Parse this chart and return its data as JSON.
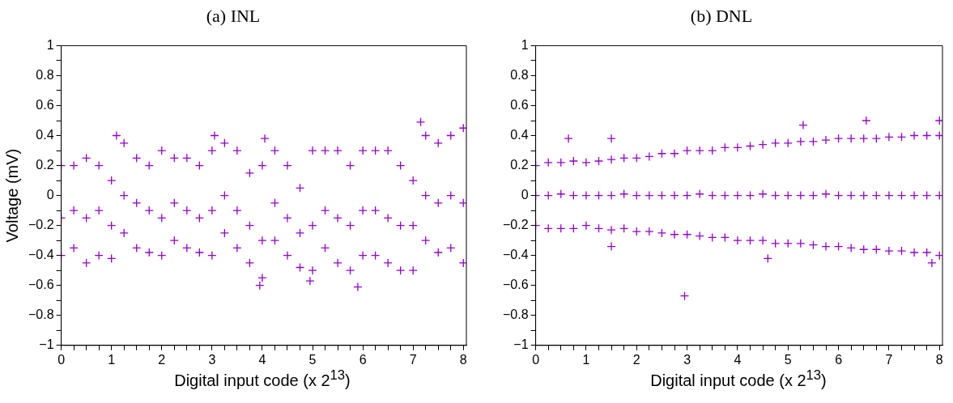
{
  "chart_data": [
    {
      "type": "scatter",
      "title": "(a) INL",
      "xlabel": "Digital input code (x 2$^{13}$)",
      "ylabel": "Voltage (mV)",
      "marker": "cross",
      "color": "#9400d3",
      "xlim": [
        0,
        8.06
      ],
      "xticks": [
        0,
        {
          "value": 0.25,
          "label": null
        },
        {
          "value": 0.5,
          "label": null
        },
        {
          "value": 0.75,
          "label": null
        },
        1,
        {
          "value": 1.25,
          "label": null
        },
        {
          "value": 1.5,
          "label": null
        },
        {
          "value": 1.75,
          "label": null
        },
        2,
        {
          "value": 2.25,
          "label": null
        },
        {
          "value": 2.5,
          "label": null
        },
        {
          "value": 2.75,
          "label": null
        },
        3,
        {
          "value": 3.25,
          "label": null
        },
        {
          "value": 3.5,
          "label": null
        },
        {
          "value": 3.75,
          "label": null
        },
        4,
        {
          "value": 4.25,
          "label": null
        },
        {
          "value": 4.5,
          "label": null
        },
        {
          "value": 4.75,
          "label": null
        },
        5,
        {
          "value": 5.25,
          "label": null
        },
        {
          "value": 5.5,
          "label": null
        },
        {
          "value": 5.75,
          "label": null
        },
        6,
        {
          "value": 6.25,
          "label": null
        },
        {
          "value": 6.5,
          "label": null
        },
        {
          "value": 6.75,
          "label": null
        },
        7,
        {
          "value": 7.25,
          "label": null
        },
        {
          "value": 7.5,
          "label": null
        },
        {
          "value": 7.75,
          "label": null
        },
        8
      ],
      "ylim": [
        -1,
        1
      ],
      "yticks": [
        {
          "value": -1,
          "label": "−1"
        },
        {
          "value": -0.9,
          "label": null
        },
        {
          "value": -0.8,
          "label": "−0.8"
        },
        {
          "value": -0.7,
          "label": null
        },
        {
          "value": -0.6,
          "label": "−0.6"
        },
        {
          "value": -0.5,
          "label": null
        },
        {
          "value": -0.4,
          "label": "−0.4"
        },
        {
          "value": -0.3,
          "label": null
        },
        {
          "value": -0.2,
          "label": "−0.2"
        },
        {
          "value": -0.1,
          "label": null
        },
        0,
        {
          "value": 0.1,
          "label": null
        },
        0.2,
        {
          "value": 0.3,
          "label": null
        },
        0.4,
        {
          "value": 0.5,
          "label": null
        },
        0.6,
        {
          "value": 0.7,
          "label": null
        },
        0.8,
        {
          "value": 0.9,
          "label": null
        },
        1
      ],
      "x": [
        0,
        0,
        0,
        0.25,
        0.25,
        0.25,
        0.5,
        0.5,
        0.5,
        0.75,
        0.75,
        0.75,
        1,
        1,
        1,
        1.25,
        1.25,
        1.25,
        1.5,
        1.5,
        1.5,
        1.75,
        1.75,
        1.75,
        2,
        2,
        2,
        2.25,
        2.25,
        2.25,
        2.5,
        2.5,
        2.5,
        2.75,
        2.75,
        2.75,
        3,
        3,
        3,
        3.25,
        3.25,
        3.25,
        3.5,
        3.5,
        3.5,
        3.75,
        3.75,
        3.75,
        4,
        4,
        4,
        4.25,
        4.25,
        4.25,
        4.5,
        4.5,
        4.5,
        4.75,
        4.75,
        4.75,
        5,
        5,
        5,
        5.25,
        5.25,
        5.25,
        5.5,
        5.5,
        5.5,
        5.75,
        5.75,
        5.75,
        6,
        6,
        6,
        6.25,
        6.25,
        6.25,
        6.5,
        6.5,
        6.5,
        6.75,
        6.75,
        6.75,
        7,
        7,
        7,
        7.25,
        7.25,
        7.25,
        7.5,
        7.5,
        7.5,
        7.75,
        7.75,
        7.75,
        8,
        8,
        8,
        1.1,
        3.05,
        3.95,
        4.05,
        4.95,
        5.9,
        7.15
      ],
      "values": [
        0.2,
        -0.15,
        -0.4,
        0.2,
        -0.1,
        -0.35,
        0.25,
        -0.15,
        -0.45,
        0.2,
        -0.1,
        -0.4,
        0.1,
        -0.2,
        -0.42,
        0.35,
        0,
        -0.25,
        0.25,
        -0.05,
        -0.35,
        0.2,
        -0.1,
        -0.38,
        0.3,
        -0.15,
        -0.4,
        0.25,
        -0.05,
        -0.3,
        0.25,
        -0.1,
        -0.35,
        0.2,
        -0.15,
        -0.38,
        0.3,
        -0.1,
        -0.4,
        0.35,
        0,
        -0.25,
        0.3,
        -0.1,
        -0.35,
        0.15,
        -0.2,
        -0.45,
        0.2,
        -0.3,
        -0.55,
        0.3,
        -0.05,
        -0.3,
        0.2,
        -0.15,
        -0.4,
        0.05,
        -0.25,
        -0.48,
        0.3,
        -0.2,
        -0.5,
        0.3,
        -0.1,
        -0.35,
        0.3,
        -0.15,
        -0.45,
        0.2,
        -0.2,
        -0.5,
        0.3,
        -0.1,
        -0.4,
        0.3,
        -0.1,
        -0.4,
        0.3,
        -0.15,
        -0.45,
        0.2,
        -0.2,
        -0.5,
        0.1,
        -0.2,
        -0.5,
        0.4,
        0,
        -0.3,
        0.35,
        -0.05,
        -0.38,
        0.4,
        0,
        -0.35,
        0.45,
        -0.05,
        -0.45,
        0.4,
        0.4,
        -0.6,
        0.38,
        -0.57,
        -0.61,
        0.49
      ]
    },
    {
      "type": "scatter",
      "title": "(b) DNL",
      "xlabel": "Digital input code (x 2$^{13}$)",
      "marker": "cross",
      "color": "#9400d3",
      "xlim": [
        0,
        8.06
      ],
      "xticks": [
        0,
        {
          "value": 0.25,
          "label": null
        },
        {
          "value": 0.5,
          "label": null
        },
        {
          "value": 0.75,
          "label": null
        },
        1,
        {
          "value": 1.25,
          "label": null
        },
        {
          "value": 1.5,
          "label": null
        },
        {
          "value": 1.75,
          "label": null
        },
        2,
        {
          "value": 2.25,
          "label": null
        },
        {
          "value": 2.5,
          "label": null
        },
        {
          "value": 2.75,
          "label": null
        },
        3,
        {
          "value": 3.25,
          "label": null
        },
        {
          "value": 3.5,
          "label": null
        },
        {
          "value": 3.75,
          "label": null
        },
        4,
        {
          "value": 4.25,
          "label": null
        },
        {
          "value": 4.5,
          "label": null
        },
        {
          "value": 4.75,
          "label": null
        },
        5,
        {
          "value": 5.25,
          "label": null
        },
        {
          "value": 5.5,
          "label": null
        },
        {
          "value": 5.75,
          "label": null
        },
        6,
        {
          "value": 6.25,
          "label": null
        },
        {
          "value": 6.5,
          "label": null
        },
        {
          "value": 6.75,
          "label": null
        },
        7,
        {
          "value": 7.25,
          "label": null
        },
        {
          "value": 7.5,
          "label": null
        },
        {
          "value": 7.75,
          "label": null
        },
        8
      ],
      "ylim": [
        -1,
        1
      ],
      "yticks": [
        {
          "value": -1,
          "label": "−1"
        },
        {
          "value": -0.9,
          "label": null
        },
        {
          "value": -0.8,
          "label": "−0.8"
        },
        {
          "value": -0.7,
          "label": null
        },
        {
          "value": -0.6,
          "label": "−0.6"
        },
        {
          "value": -0.5,
          "label": null
        },
        {
          "value": -0.4,
          "label": "−0.4"
        },
        {
          "value": -0.3,
          "label": null
        },
        {
          "value": -0.2,
          "label": "−0.2"
        },
        {
          "value": -0.1,
          "label": null
        },
        0,
        {
          "value": 0.1,
          "label": null
        },
        0.2,
        {
          "value": 0.3,
          "label": null
        },
        0.4,
        {
          "value": 0.5,
          "label": null
        },
        0.6,
        {
          "value": 0.7,
          "label": null
        },
        0.8,
        {
          "value": 0.9,
          "label": null
        },
        1
      ],
      "x": [
        0,
        0,
        0,
        0.25,
        0.25,
        0.25,
        0.5,
        0.5,
        0.5,
        0.75,
        0.75,
        0.75,
        1,
        1,
        1,
        1.25,
        1.25,
        1.25,
        1.5,
        1.5,
        1.5,
        1.75,
        1.75,
        1.75,
        2,
        2,
        2,
        2.25,
        2.25,
        2.25,
        2.5,
        2.5,
        2.5,
        2.75,
        2.75,
        2.75,
        3,
        3,
        3,
        3.25,
        3.25,
        3.25,
        3.5,
        3.5,
        3.5,
        3.75,
        3.75,
        3.75,
        4,
        4,
        4,
        4.25,
        4.25,
        4.25,
        4.5,
        4.5,
        4.5,
        4.75,
        4.75,
        4.75,
        5,
        5,
        5,
        5.25,
        5.25,
        5.25,
        5.5,
        5.5,
        5.5,
        5.75,
        5.75,
        5.75,
        6,
        6,
        6,
        6.25,
        6.25,
        6.25,
        6.5,
        6.5,
        6.5,
        6.75,
        6.75,
        6.75,
        7,
        7,
        7,
        7.25,
        7.25,
        7.25,
        7.5,
        7.5,
        7.5,
        7.75,
        7.75,
        7.75,
        8,
        8,
        8,
        0.65,
        1.5,
        1.5,
        2.95,
        4.6,
        5.3,
        6.55,
        7.85,
        8
      ],
      "values": [
        0.2,
        0,
        -0.2,
        0.22,
        0,
        -0.22,
        0.22,
        0.01,
        -0.22,
        0.23,
        0,
        -0.22,
        0.22,
        0,
        -0.2,
        0.23,
        0,
        -0.22,
        0.24,
        0,
        -0.23,
        0.25,
        0.01,
        -0.22,
        0.25,
        0,
        -0.24,
        0.26,
        0,
        -0.24,
        0.28,
        0,
        -0.25,
        0.28,
        0,
        -0.26,
        0.3,
        0,
        -0.26,
        0.3,
        0.01,
        -0.27,
        0.3,
        0,
        -0.28,
        0.32,
        0,
        -0.28,
        0.32,
        0,
        -0.3,
        0.33,
        0,
        -0.3,
        0.34,
        0.01,
        -0.3,
        0.35,
        0,
        -0.32,
        0.35,
        0,
        -0.32,
        0.36,
        0,
        -0.32,
        0.36,
        0,
        -0.33,
        0.37,
        0.01,
        -0.34,
        0.38,
        0,
        -0.34,
        0.38,
        0,
        -0.35,
        0.38,
        0,
        -0.36,
        0.38,
        0,
        -0.36,
        0.39,
        0,
        -0.37,
        0.39,
        0,
        -0.37,
        0.4,
        0,
        -0.38,
        0.4,
        0,
        -0.38,
        0.4,
        0,
        -0.4,
        0.38,
        0.38,
        -0.34,
        -0.67,
        -0.42,
        0.47,
        0.5,
        -0.45,
        0.5
      ]
    }
  ]
}
